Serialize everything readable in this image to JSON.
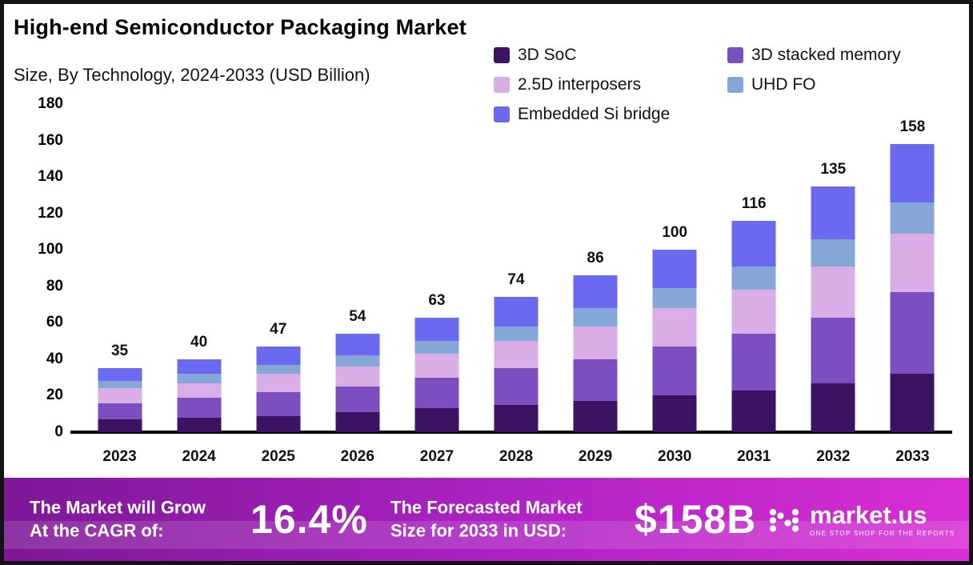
{
  "header": {
    "title": "High-end Semiconductor Packaging Market",
    "subtitle": "Size, By Technology, 2024-2033 (USD Billion)"
  },
  "chart_data": {
    "type": "bar",
    "stacked": true,
    "title": "High-end Semiconductor Packaging Market Size, By Technology, 2024-2033 (USD Billion)",
    "categories": [
      "2023",
      "2024",
      "2025",
      "2026",
      "2027",
      "2028",
      "2029",
      "2030",
      "2031",
      "2032",
      "2033"
    ],
    "totals": [
      35,
      40,
      47,
      54,
      63,
      74,
      86,
      100,
      116,
      135,
      158
    ],
    "series": [
      {
        "name": "3D SoC",
        "color": "#3c1263",
        "values": [
          7,
          8,
          9,
          11,
          13,
          15,
          17,
          20,
          23,
          27,
          32
        ]
      },
      {
        "name": "3D stacked memory",
        "color": "#7b4fc0",
        "values": [
          9,
          11,
          13,
          14,
          17,
          20,
          23,
          27,
          31,
          36,
          45
        ]
      },
      {
        "name": "2.5D interposers",
        "color": "#d9aee6",
        "values": [
          8,
          8,
          10,
          11,
          13,
          15,
          18,
          21,
          24,
          28,
          32
        ]
      },
      {
        "name": "UHD FO",
        "color": "#84a7d8",
        "values": [
          4,
          5,
          5,
          6,
          7,
          8,
          10,
          11,
          13,
          15,
          17
        ]
      },
      {
        "name": "Embedded Si bridge",
        "color": "#6a69ef",
        "values": [
          7,
          8,
          10,
          12,
          13,
          16,
          18,
          21,
          25,
          29,
          32
        ]
      }
    ],
    "xlabel": "",
    "ylabel": "",
    "ylim": [
      0,
      180
    ],
    "ytick_step": 20,
    "grid": false,
    "legend_position": "top-right"
  },
  "banner": {
    "cagr_label_line1": "The Market will Grow",
    "cagr_label_line2": "At the CAGR of:",
    "cagr_value": "16.4%",
    "forecast_label_line1": "The Forecasted Market",
    "forecast_label_line2": "Size for 2033 in USD:",
    "forecast_value": "$158B",
    "brand": "market.us",
    "brand_tagline": "ONE STOP SHOP FOR THE REPORTS"
  }
}
